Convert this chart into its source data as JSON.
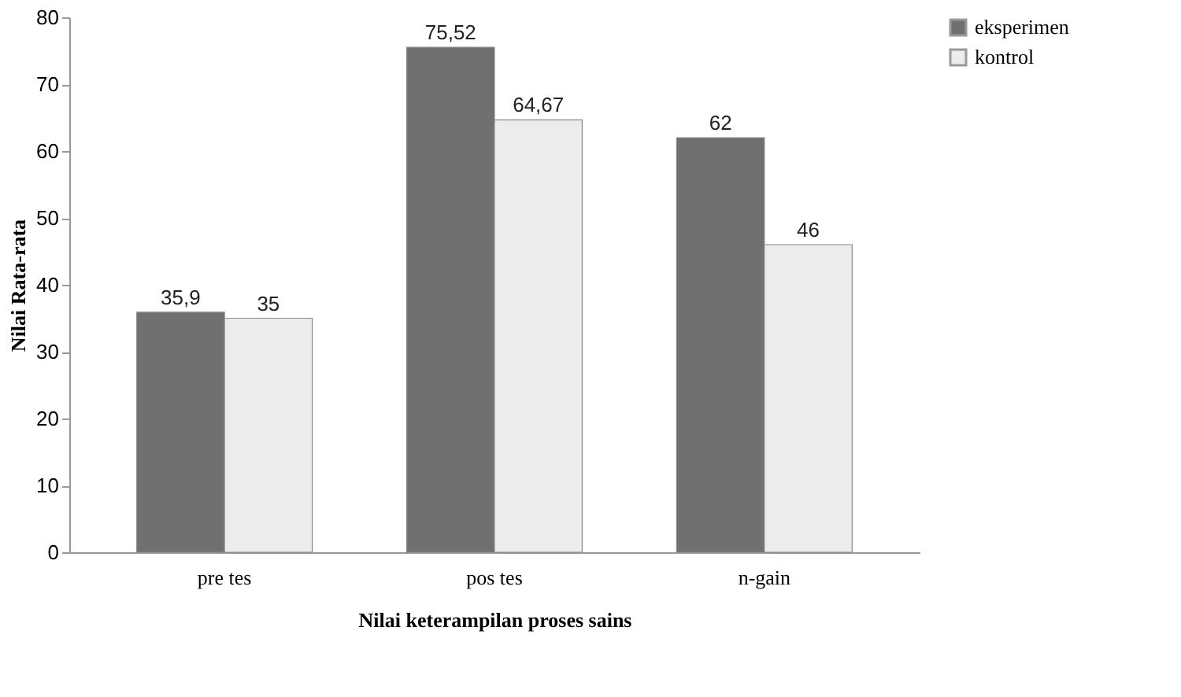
{
  "chart_data": {
    "type": "bar",
    "xlabel": "Nilai keterampilan proses sains",
    "ylabel": "Nilai Rata-rata",
    "categories": [
      "pre tes",
      "pos tes",
      "n-gain"
    ],
    "series": [
      {
        "name": "eksperimen",
        "color": "#707070",
        "values": [
          35.9,
          75.52,
          62
        ],
        "value_labels": [
          "35,9",
          "75,52",
          "62"
        ]
      },
      {
        "name": "kontrol",
        "color": "#ececec",
        "values": [
          35,
          64.67,
          46
        ],
        "value_labels": [
          "35",
          "64,67",
          "46"
        ]
      }
    ],
    "ylim": [
      0,
      80
    ],
    "yticks": [
      0,
      10,
      20,
      30,
      40,
      50,
      60,
      70,
      80
    ],
    "grid": false,
    "legend": "right"
  }
}
